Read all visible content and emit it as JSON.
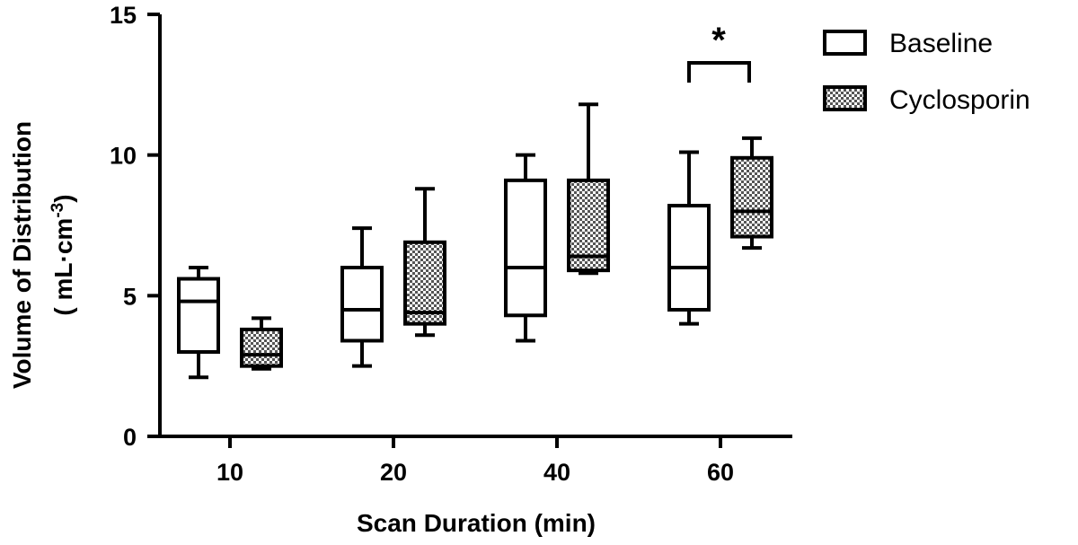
{
  "chart_data": {
    "type": "box",
    "xlabel": "Scan Duration (min)",
    "ylabel_line1": "Volume of Distribution",
    "ylabel_line2_prefix": "( mL·cm",
    "ylabel_line2_sup": "-3",
    "ylabel_line2_suffix": ")",
    "ylim": [
      0,
      15
    ],
    "yticks": [
      0,
      5,
      10,
      15
    ],
    "categories": [
      "10",
      "20",
      "40",
      "60"
    ],
    "series": [
      {
        "name": "Baseline",
        "fill": "white",
        "boxes": [
          {
            "min": 2.1,
            "q1": 3.0,
            "median": 4.8,
            "q3": 5.6,
            "max": 6.0
          },
          {
            "min": 2.5,
            "q1": 3.4,
            "median": 4.5,
            "q3": 6.0,
            "max": 7.4
          },
          {
            "min": 3.4,
            "q1": 4.3,
            "median": 6.0,
            "q3": 9.1,
            "max": 10.0
          },
          {
            "min": 4.0,
            "q1": 4.5,
            "median": 6.0,
            "q3": 8.2,
            "max": 10.1
          }
        ]
      },
      {
        "name": "Cyclosporin",
        "fill": "checkered",
        "boxes": [
          {
            "min": 2.4,
            "q1": 2.5,
            "median": 2.9,
            "q3": 3.8,
            "max": 4.2
          },
          {
            "min": 3.6,
            "q1": 4.0,
            "median": 4.4,
            "q3": 6.9,
            "max": 8.8
          },
          {
            "min": 5.8,
            "q1": 5.9,
            "median": 6.4,
            "q3": 9.1,
            "max": 11.8
          },
          {
            "min": 6.7,
            "q1": 7.1,
            "median": 8.0,
            "q3": 9.9,
            "max": 10.6
          }
        ]
      }
    ],
    "annotations": [
      {
        "text": "*",
        "category": "60",
        "type": "significance-bracket"
      }
    ],
    "legend": {
      "placement": "top-right"
    },
    "grid": false,
    "colors": {
      "stroke": "#000000",
      "checker_dark": "#5a5a5a",
      "checker_light": "#ffffff"
    }
  }
}
